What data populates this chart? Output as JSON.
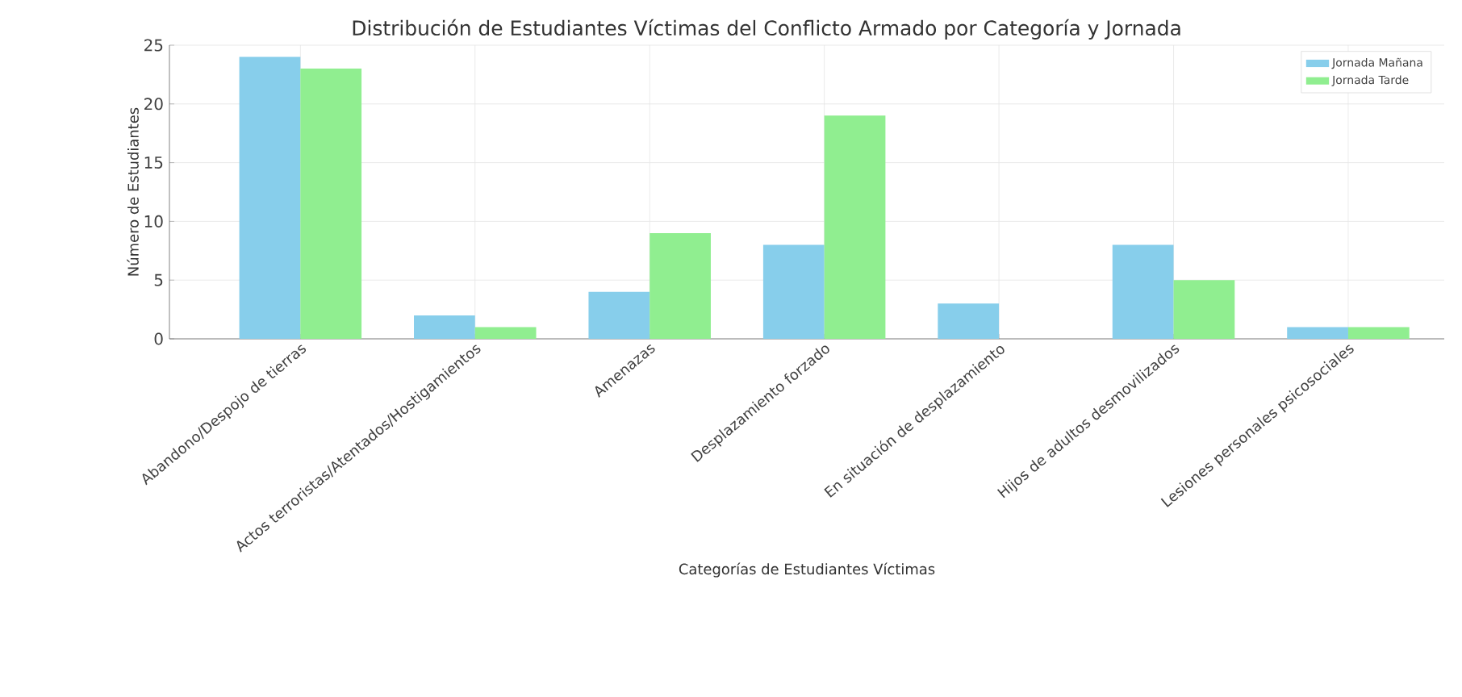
{
  "chart_data": {
    "type": "bar",
    "title": "Distribución de Estudiantes Víctimas del Conflicto Armado por Categoría y Jornada",
    "xlabel": "Categorías de Estudiantes Víctimas",
    "ylabel": "Número de Estudiantes",
    "categories": [
      "Abandono/Despojo de tierras",
      "Actos terroristas/Atentados/Hostigamientos",
      "Amenazas",
      "Desplazamiento forzado",
      "En situación de desplazamiento",
      "Hijos de adultos desmovilizados",
      "Lesiones personales psicosociales"
    ],
    "series": [
      {
        "name": "Jornada Mañana",
        "color": "#87ceeb",
        "values": [
          24,
          2,
          4,
          8,
          3,
          8,
          1
        ]
      },
      {
        "name": "Jornada Tarde",
        "color": "#90ee90",
        "values": [
          23,
          1,
          9,
          19,
          0,
          5,
          1
        ]
      }
    ],
    "ylim": [
      0,
      25
    ],
    "yticks": [
      0,
      5,
      10,
      15,
      20,
      25
    ],
    "grid": true,
    "legend": "top right"
  }
}
